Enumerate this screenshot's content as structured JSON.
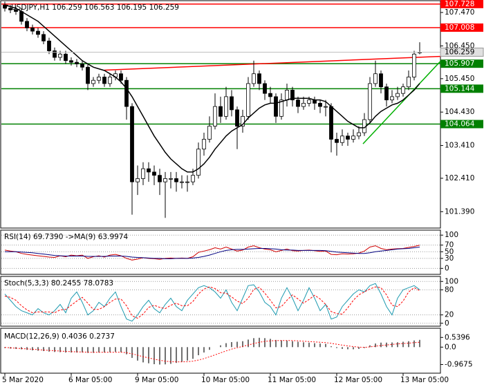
{
  "chart_data": [
    {
      "type": "candlestick",
      "title": "USDJPY,H1  106.259 106.563 106.195 106.259",
      "categories": [
        "5 Mar 2020",
        null,
        null,
        null,
        null,
        null,
        null,
        null,
        null,
        null,
        null,
        null,
        "6 Mar 05:00",
        null,
        null,
        null,
        null,
        null,
        null,
        null,
        null,
        null,
        null,
        null,
        "9 Mar 05:00",
        null,
        null,
        null,
        null,
        null,
        null,
        null,
        null,
        null,
        null,
        null,
        "10 Mar 05:00",
        null,
        null,
        null,
        null,
        null,
        null,
        null,
        null,
        null,
        null,
        null,
        "11 Mar 05:00",
        null,
        null,
        null,
        null,
        null,
        null,
        null,
        null,
        null,
        null,
        null,
        "12 Mar 05:00",
        null,
        null,
        null,
        null,
        null,
        null,
        null,
        null,
        null,
        null,
        null,
        "13 Mar 05:00",
        null,
        null,
        null
      ],
      "open": [
        107.7,
        107.6,
        107.55,
        107.5,
        107.2,
        107,
        106.9,
        106.8,
        106.6,
        106.3,
        106.1,
        106.2,
        106,
        105.95,
        105.9,
        105.8,
        105.3,
        105.4,
        105.5,
        105.3,
        105.5,
        105.6,
        105.4,
        104.6,
        102.3,
        102.4,
        102.7,
        102.6,
        102.5,
        102.3,
        102.4,
        102.4,
        102.3,
        102.3,
        102.3,
        102.5,
        103.3,
        103.6,
        104,
        104.6,
        104.3,
        104.9,
        104.5,
        104,
        104.3,
        105.3,
        105.6,
        105.3,
        105,
        104.9,
        104.3,
        104.8,
        105.1,
        104.8,
        104.6,
        104.7,
        104.8,
        104.7,
        104.6,
        104.6,
        103.6,
        103.5,
        103.7,
        103.6,
        103.7,
        103.8,
        104.2,
        105.3,
        105.6,
        105.2,
        104.8,
        104.9,
        105,
        105.2,
        105.5,
        106.259
      ],
      "high": [
        107.8,
        107.7,
        107.65,
        107.6,
        107.3,
        107.1,
        107,
        106.9,
        106.7,
        106.4,
        106.3,
        106.3,
        106.1,
        106.05,
        106,
        105.9,
        105.5,
        105.6,
        105.6,
        105.6,
        105.7,
        105.7,
        105.5,
        104.7,
        102.8,
        102.9,
        102.9,
        102.8,
        102.7,
        102.6,
        102.6,
        102.6,
        102.5,
        102.5,
        102.7,
        103.5,
        103.8,
        104.3,
        105,
        104.9,
        105.2,
        105.1,
        104.6,
        104.5,
        105.5,
        106,
        105.7,
        105.4,
        105.2,
        105,
        105,
        105.3,
        105.2,
        104.9,
        104.9,
        104.9,
        104.9,
        104.8,
        104.8,
        104.7,
        103.8,
        103.9,
        103.8,
        103.9,
        104,
        104.4,
        105.5,
        106,
        105.7,
        105.3,
        105.1,
        105.2,
        105.3,
        105.7,
        106.3,
        106.563
      ],
      "low": [
        107.5,
        107.45,
        107.4,
        107.1,
        106.9,
        106.8,
        106.7,
        106.5,
        106.2,
        106,
        106,
        105.9,
        105.85,
        105.8,
        105.7,
        105.1,
        105.2,
        105.3,
        105.2,
        105.2,
        105.4,
        105.3,
        104.2,
        101.3,
        101.9,
        102.2,
        102.3,
        102.2,
        101.9,
        101.2,
        102.1,
        102,
        102.1,
        102,
        102.2,
        102.4,
        103.1,
        103.5,
        103.9,
        104.1,
        104.2,
        104.3,
        103.3,
        103.8,
        104.2,
        105.2,
        105.1,
        104.8,
        104.7,
        104.1,
        104.2,
        104.6,
        104.6,
        104.4,
        104.5,
        104.6,
        104.5,
        104.4,
        104.3,
        103.2,
        103.1,
        103.4,
        103.4,
        103.5,
        103.6,
        103.7,
        104.1,
        105.2,
        105,
        104.6,
        104.7,
        104.8,
        104.9,
        105.1,
        105.4,
        106.195
      ],
      "close": [
        107.6,
        107.55,
        107.5,
        107.2,
        107,
        106.9,
        106.8,
        106.6,
        106.3,
        106.1,
        106.2,
        106,
        105.95,
        105.9,
        105.8,
        105.3,
        105.4,
        105.5,
        105.3,
        105.5,
        105.6,
        105.4,
        104.6,
        102.3,
        102.4,
        102.7,
        102.6,
        102.5,
        102.3,
        102.4,
        102.4,
        102.3,
        102.3,
        102.3,
        102.5,
        103.3,
        103.6,
        104,
        104.6,
        104.3,
        104.9,
        104.5,
        104,
        104.3,
        105.3,
        105.6,
        105.3,
        105,
        104.9,
        104.3,
        104.8,
        105.1,
        104.8,
        104.6,
        104.7,
        104.8,
        104.7,
        104.6,
        104.6,
        103.6,
        103.5,
        103.7,
        103.6,
        103.7,
        103.8,
        104.2,
        105.3,
        105.6,
        105.2,
        104.8,
        104.9,
        105,
        105.2,
        105.5,
        106.2,
        106.259
      ],
      "bull_color": "#ffffff",
      "bear_color": "#000000",
      "ma": {
        "color": "#000000",
        "values": [
          107.7,
          107.65,
          107.6,
          107.5,
          107.4,
          107.3,
          107.2,
          107.05,
          106.9,
          106.75,
          106.6,
          106.45,
          106.3,
          106.15,
          106,
          105.9,
          105.8,
          105.75,
          105.7,
          105.6,
          105.5,
          105.35,
          105.15,
          104.9,
          104.6,
          104.3,
          104,
          103.7,
          103.45,
          103.2,
          103,
          102.85,
          102.7,
          102.6,
          102.6,
          102.7,
          102.85,
          103.05,
          103.3,
          103.5,
          103.7,
          103.85,
          103.95,
          104.05,
          104.25,
          104.4,
          104.55,
          104.65,
          104.7,
          104.7,
          104.75,
          104.8,
          104.85,
          104.85,
          104.85,
          104.85,
          104.8,
          104.8,
          104.75,
          104.6,
          104.45,
          104.3,
          104.15,
          104.05,
          103.95,
          103.95,
          104.1,
          104.3,
          104.45,
          104.55,
          104.65,
          104.7,
          104.8,
          104.95,
          105.1,
          105.3
        ]
      },
      "levels": [
        {
          "value": 107.728,
          "color": "#ff0000"
        },
        {
          "value": 107.008,
          "color": "#ff0000"
        },
        {
          "value": 105.907,
          "color": "#008000"
        },
        {
          "value": 105.144,
          "color": "#008000"
        },
        {
          "value": 104.064,
          "color": "#008000"
        }
      ],
      "trend_lines": [
        {
          "x": [
            18,
            78.75
          ],
          "y": [
            105.71,
            106.13
          ],
          "color": "#ff0000"
        },
        {
          "x": [
            64.75,
            78.75
          ],
          "y": [
            103.46,
            105.98
          ],
          "color": "#00b000"
        }
      ],
      "ylim": [
        100.89,
        107.83
      ],
      "yticks": [
        {
          "value": 107.47,
          "label": "107.470"
        },
        {
          "value": 106.45,
          "label": "106.450"
        },
        {
          "value": 105.45,
          "label": "105.450"
        },
        {
          "value": 104.43,
          "label": "104.430"
        },
        {
          "value": 103.41,
          "label": "103.410"
        },
        {
          "value": 102.41,
          "label": "102.410"
        },
        {
          "value": 101.39,
          "label": "101.390"
        }
      ]
    },
    {
      "type": "line",
      "title": "RSI(14) 69.7390 ->MA(9) 63.9974",
      "series": [
        {
          "color": "#d00000",
          "values": [
            55,
            52,
            50,
            45,
            42,
            40,
            38,
            36,
            34,
            33,
            38,
            35,
            40,
            38,
            40,
            30,
            35,
            38,
            34,
            40,
            42,
            38,
            30,
            25,
            28,
            32,
            30,
            29,
            27,
            30,
            31,
            30,
            31,
            30,
            35,
            48,
            52,
            56,
            62,
            58,
            64,
            58,
            52,
            55,
            64,
            68,
            62,
            58,
            56,
            50,
            54,
            58,
            53,
            52,
            54,
            55,
            53,
            51,
            52,
            42,
            41,
            44,
            43,
            44,
            46,
            52,
            64,
            68,
            60,
            56,
            58,
            59,
            60,
            63,
            66,
            69.739
          ]
        },
        {
          "color": "#000080",
          "values": [
            50,
            50,
            50,
            49,
            48,
            47,
            45,
            43,
            41,
            39,
            38,
            37,
            37,
            37,
            37,
            36,
            36,
            36,
            36,
            37,
            37,
            37,
            36,
            34,
            33,
            32,
            31,
            30,
            30,
            29,
            29,
            30,
            30,
            30,
            31,
            33,
            36,
            40,
            45,
            50,
            54,
            56,
            57,
            57,
            58,
            59,
            60,
            60,
            59,
            58,
            56,
            55,
            55,
            54,
            54,
            54,
            54,
            54,
            53,
            51,
            49,
            48,
            47,
            46,
            45,
            45,
            47,
            50,
            52,
            54,
            56,
            58,
            59,
            60,
            62,
            63.9974
          ]
        }
      ],
      "ylim": [
        -18,
        115
      ],
      "yticks": [
        100,
        70,
        50,
        30,
        0
      ],
      "grid": true
    },
    {
      "type": "line",
      "title": "Stoch(5,3,3) 80.2455 78.0783",
      "series": [
        {
          "color": "#1e9ab0",
          "values": [
            70,
            55,
            40,
            30,
            25,
            20,
            35,
            25,
            20,
            30,
            45,
            25,
            60,
            75,
            50,
            20,
            30,
            50,
            40,
            60,
            75,
            40,
            10,
            5,
            20,
            40,
            55,
            35,
            25,
            45,
            60,
            40,
            30,
            55,
            70,
            85,
            90,
            85,
            75,
            60,
            80,
            50,
            30,
            60,
            90,
            92,
            75,
            50,
            40,
            20,
            60,
            85,
            60,
            30,
            55,
            85,
            60,
            30,
            45,
            10,
            15,
            40,
            55,
            70,
            80,
            75,
            90,
            95,
            70,
            40,
            20,
            60,
            80,
            85,
            90,
            80.2455
          ]
        },
        {
          "color": "#ff0000",
          "dashed": true,
          "values": [
            65,
            62,
            55,
            42,
            32,
            25,
            27,
            27,
            27,
            25,
            32,
            33,
            43,
            53,
            62,
            48,
            33,
            33,
            40,
            50,
            58,
            58,
            42,
            18,
            12,
            22,
            38,
            43,
            38,
            35,
            43,
            48,
            42,
            42,
            52,
            70,
            82,
            87,
            83,
            73,
            72,
            63,
            53,
            47,
            60,
            81,
            86,
            72,
            55,
            37,
            40,
            55,
            68,
            58,
            48,
            57,
            67,
            58,
            45,
            28,
            23,
            22,
            37,
            55,
            68,
            75,
            82,
            87,
            85,
            68,
            43,
            40,
            53,
            75,
            85,
            78.0783
          ]
        }
      ],
      "ylim": [
        -7,
        112
      ],
      "yticks": [
        100,
        80,
        20,
        0
      ],
      "grid": true
    },
    {
      "type": "macd",
      "title": "MACD(12,26,9) 0.4036 0.2737",
      "histogram": {
        "color": "#404040",
        "values": [
          -0.05,
          -0.08,
          -0.1,
          -0.12,
          -0.15,
          -0.18,
          -0.2,
          -0.22,
          -0.25,
          -0.27,
          -0.28,
          -0.3,
          -0.3,
          -0.3,
          -0.3,
          -0.32,
          -0.32,
          -0.3,
          -0.3,
          -0.28,
          -0.26,
          -0.28,
          -0.4,
          -0.6,
          -0.75,
          -0.85,
          -0.9,
          -0.95,
          -0.97,
          -0.96,
          -0.93,
          -0.88,
          -0.82,
          -0.75,
          -0.65,
          -0.45,
          -0.3,
          -0.15,
          0,
          0.1,
          0.22,
          0.28,
          0.3,
          0.33,
          0.42,
          0.5,
          0.52,
          0.5,
          0.46,
          0.4,
          0.38,
          0.36,
          0.33,
          0.3,
          0.27,
          0.25,
          0.22,
          0.2,
          0.18,
          0.05,
          -0.05,
          -0.1,
          -0.12,
          -0.12,
          -0.1,
          -0.05,
          0.1,
          0.2,
          0.25,
          0.25,
          0.26,
          0.27,
          0.3,
          0.33,
          0.37,
          0.4036
        ]
      },
      "signal": {
        "color": "#ff0000",
        "values": [
          -0.02,
          -0.04,
          -0.06,
          -0.08,
          -0.1,
          -0.12,
          -0.14,
          -0.16,
          -0.18,
          -0.2,
          -0.22,
          -0.24,
          -0.25,
          -0.26,
          -0.27,
          -0.28,
          -0.29,
          -0.29,
          -0.29,
          -0.29,
          -0.29,
          -0.28,
          -0.31,
          -0.37,
          -0.45,
          -0.53,
          -0.6,
          -0.67,
          -0.73,
          -0.78,
          -0.81,
          -0.82,
          -0.82,
          -0.81,
          -0.78,
          -0.72,
          -0.64,
          -0.54,
          -0.43,
          -0.32,
          -0.21,
          -0.11,
          -0.03,
          0.04,
          0.12,
          0.2,
          0.27,
          0.32,
          0.35,
          0.36,
          0.37,
          0.37,
          0.36,
          0.35,
          0.33,
          0.31,
          0.29,
          0.27,
          0.25,
          0.21,
          0.16,
          0.11,
          0.07,
          0.03,
          0,
          -0.01,
          0.01,
          0.05,
          0.09,
          0.12,
          0.15,
          0.18,
          0.2,
          0.22,
          0.25,
          0.2737
        ]
      },
      "ylim": [
        -1.45,
        1.05
      ],
      "yticks": [
        0.5396,
        {
          "value": 0,
          "label": "0.0"
        },
        -0.9675
      ]
    }
  ]
}
